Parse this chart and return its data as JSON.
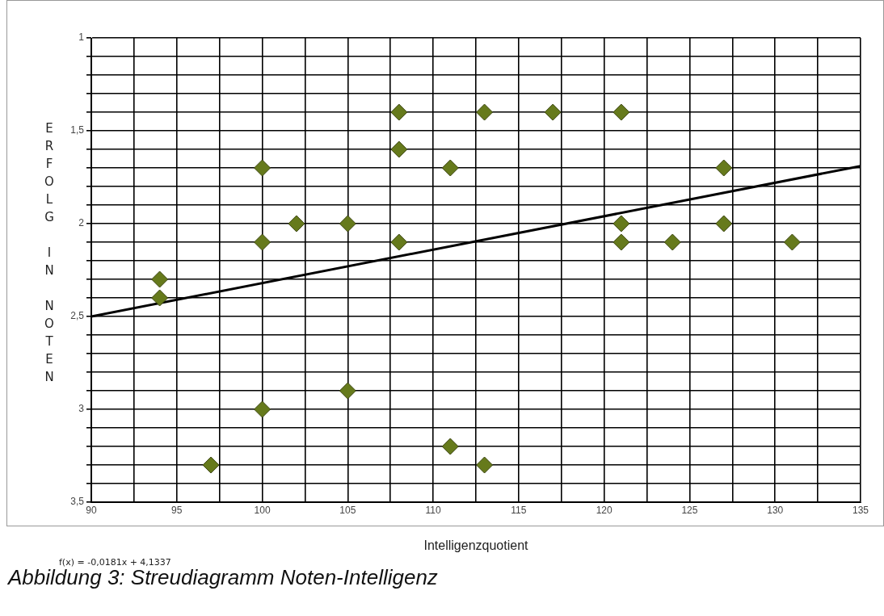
{
  "chart_data": {
    "type": "scatter",
    "xlabel": "Intelligenzquotient",
    "ylabel": "ERFOLG IN NOTEN",
    "annotations": [
      "f(x) = -0,0181x + 4,1337",
      "Abbildung 3: Streudiagramm Noten-Intelligenz"
    ],
    "series": [
      {
        "color": "#667a1c",
        "marker": "diamond",
        "x": [
          94,
          94,
          97,
          100,
          100,
          100,
          102,
          105,
          105,
          108,
          108,
          108,
          111,
          111,
          113,
          113,
          117,
          121,
          121,
          121,
          124,
          127,
          127,
          131
        ],
        "values": [
          2.3,
          2.4,
          3.3,
          1.7,
          2.1,
          3.0,
          2.0,
          2.0,
          2.9,
          1.4,
          1.6,
          2.1,
          1.7,
          3.2,
          1.4,
          3.3,
          1.4,
          1.4,
          2.0,
          2.1,
          2.1,
          1.7,
          2.0,
          2.1
        ]
      },
      {
        "type": "line",
        "color": "#000000",
        "marker": "none",
        "line_style": "solid",
        "x": [
          90,
          135
        ],
        "values": [
          2.5,
          1.69
        ]
      }
    ],
    "xlim": [
      90,
      135
    ],
    "xticks": [
      90,
      {
        "value": 92.5,
        "label": null
      },
      95,
      {
        "value": 97.5,
        "label": null
      },
      100,
      {
        "value": 102.5,
        "label": null
      },
      105,
      {
        "value": 107.5,
        "label": null
      },
      110,
      {
        "value": 112.5,
        "label": null
      },
      115,
      {
        "value": 117.5,
        "label": null
      },
      120,
      {
        "value": 122.5,
        "label": null
      },
      125,
      {
        "value": 127.5,
        "label": null
      },
      130,
      {
        "value": 132.5,
        "label": null
      },
      135
    ],
    "ylim": [
      3.5,
      1
    ],
    "yticks": [
      1,
      {
        "value": 1.1,
        "label": null
      },
      {
        "value": 1.2,
        "label": null
      },
      {
        "value": 1.3,
        "label": null
      },
      {
        "value": 1.4,
        "label": null
      },
      {
        "value": 1.5,
        "label": "1,5"
      },
      {
        "value": 1.6,
        "label": null
      },
      {
        "value": 1.7,
        "label": null
      },
      {
        "value": 1.8,
        "label": null
      },
      {
        "value": 1.9,
        "label": null
      },
      2,
      {
        "value": 2.1,
        "label": null
      },
      {
        "value": 2.2,
        "label": null
      },
      {
        "value": 2.3,
        "label": null
      },
      {
        "value": 2.4,
        "label": null
      },
      {
        "value": 2.5,
        "label": "2,5"
      },
      {
        "value": 2.6,
        "label": null
      },
      {
        "value": 2.7,
        "label": null
      },
      {
        "value": 2.8,
        "label": null
      },
      {
        "value": 2.9,
        "label": null
      },
      3,
      {
        "value": 3.1,
        "label": null
      },
      {
        "value": 3.2,
        "label": null
      },
      {
        "value": 3.3,
        "label": null
      },
      {
        "value": 3.4,
        "label": null
      },
      {
        "value": 3.5,
        "label": "3,5"
      }
    ],
    "grid": true,
    "legend": false
  }
}
